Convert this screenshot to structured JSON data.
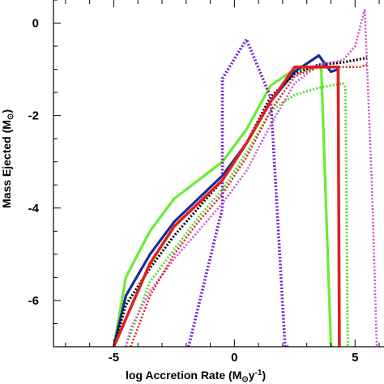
{
  "chart_data": {
    "type": "line",
    "xlabel": "log Accretion Rate (M",
    "xlabel_sub": "⊙",
    "xlabel_tail": "y",
    "xlabel_sup": "-1",
    "xlabel_close": ")",
    "ylabel": "Mass Ejected (M",
    "ylabel_sub": "⊙",
    "ylabel_close": ")",
    "xlim": [
      -7.5,
      6.2
    ],
    "ylim": [
      -7.0,
      0.5
    ],
    "x_ticks": [
      -5,
      0,
      5
    ],
    "x_tick_labels": [
      "-5",
      "0",
      "5"
    ],
    "y_ticks": [
      0,
      -2,
      -4,
      -6
    ],
    "y_tick_labels": [
      "0",
      "-2",
      "-4",
      "-6"
    ],
    "series": [
      {
        "color": "#66ee33",
        "style": "solid",
        "width": 3.2,
        "x": [
          -5.0,
          -4.5,
          -3.5,
          -2.5,
          -1.5,
          -0.5,
          0.5,
          1.5,
          2.5,
          3.5,
          3.6,
          4.0,
          4.1
        ],
        "y": [
          -7.0,
          -5.5,
          -4.5,
          -3.8,
          -3.4,
          -3.0,
          -2.3,
          -1.35,
          -1.0,
          -0.95,
          -1.0,
          -7.0,
          -7.0
        ]
      },
      {
        "color": "#1a2a99",
        "style": "solid",
        "width": 3.2,
        "x": [
          -5.0,
          -4.5,
          -3.5,
          -2.5,
          -1.5,
          -0.5,
          0.5,
          1.5,
          2.5,
          3.5,
          4.0,
          4.3
        ],
        "y": [
          -7.0,
          -5.9,
          -5.0,
          -4.3,
          -3.8,
          -3.3,
          -2.6,
          -1.7,
          -1.05,
          -0.7,
          -1.05,
          -1.0
        ]
      },
      {
        "color": "#000000",
        "style": "dotted",
        "width": 3.2,
        "x": [
          -5.0,
          -4.5,
          -3.5,
          -2.5,
          -1.5,
          -0.5,
          0.5,
          1.5,
          2.5,
          3.5,
          4.5,
          5.5
        ],
        "y": [
          -7.0,
          -6.1,
          -5.3,
          -4.6,
          -4.0,
          -3.4,
          -2.6,
          -1.6,
          -1.1,
          -0.9,
          -0.85,
          -0.75
        ]
      },
      {
        "color": "#55dd33",
        "style": "dotted",
        "width": 3.0,
        "x": [
          -4.5,
          -3.5,
          -2.5,
          -1.5,
          -0.5,
          0.5,
          1.5,
          2.5,
          3.5,
          4.5,
          4.6,
          4.7
        ],
        "y": [
          -7.0,
          -5.6,
          -4.9,
          -4.2,
          -3.6,
          -2.8,
          -1.9,
          -1.55,
          -1.4,
          -1.3,
          -1.4,
          -7.0
        ]
      },
      {
        "color": "#cc55cc",
        "style": "dotted",
        "width": 2.6,
        "x": [
          -4.5,
          -4.3,
          -3.5,
          -2.5,
          -1.5,
          -0.5,
          0.5,
          1.5,
          2.5,
          3.5,
          4.5,
          5.0,
          5.4,
          5.7,
          5.9
        ],
        "y": [
          -7.0,
          -6.6,
          -5.8,
          -5.1,
          -4.5,
          -3.9,
          -3.2,
          -2.2,
          -1.3,
          -0.9,
          -0.8,
          -0.5,
          0.3,
          -3.5,
          -7.0
        ]
      },
      {
        "color": "#dd2222",
        "style": "dotted",
        "width": 2.6,
        "x": [
          -4.3,
          -3.5,
          -2.5,
          -1.5,
          -0.5,
          0.5,
          1.5,
          2.5,
          3.5,
          4.5,
          5.2,
          5.5
        ],
        "y": [
          -7.0,
          -5.9,
          -5.0,
          -4.3,
          -3.7,
          -2.9,
          -1.9,
          -1.15,
          -0.95,
          -0.95,
          -0.95,
          -0.9
        ]
      },
      {
        "color": "#7722cc",
        "style": "dotted",
        "width": 3.6,
        "x": [
          -1.9,
          -0.5,
          -0.5,
          0.5,
          1.5,
          2.1,
          2.3
        ],
        "y": [
          -7.0,
          -4.0,
          -1.2,
          -0.35,
          -1.6,
          -7.0,
          -7.0
        ]
      },
      {
        "color": "#dd2020",
        "style": "solid",
        "width": 3.6,
        "x": [
          -5.0,
          -4.5,
          -3.5,
          -2.5,
          -1.5,
          -0.5,
          0.5,
          1.5,
          2.5,
          3.5,
          4.0,
          4.3,
          4.35
        ],
        "y": [
          -7.0,
          -6.4,
          -5.2,
          -4.4,
          -3.9,
          -3.4,
          -2.6,
          -1.7,
          -0.95,
          -0.95,
          -0.95,
          -0.95,
          -7.0
        ]
      }
    ]
  }
}
